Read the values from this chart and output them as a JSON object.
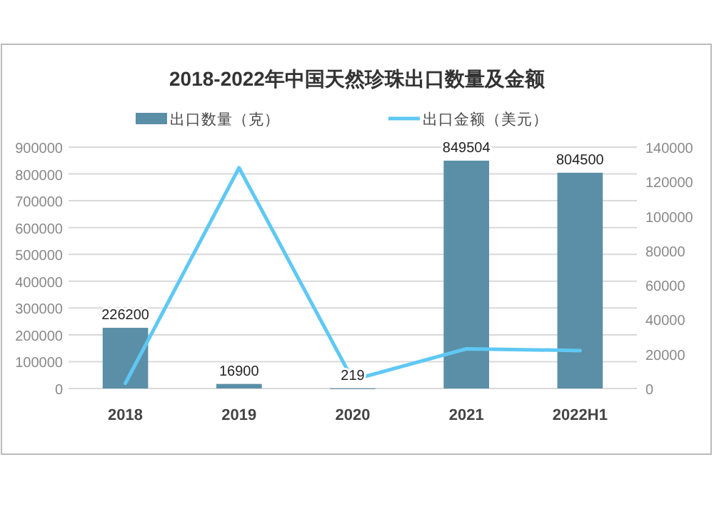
{
  "chart_data": {
    "type": "bar",
    "title": "2018-2022年中国天然珍珠出口数量及金额",
    "categories": [
      "2018",
      "2019",
      "2020",
      "2021",
      "2022H1"
    ],
    "series": [
      {
        "name": "出口数量（克）",
        "color": "#5b8fa7",
        "values": [
          226200,
          16900,
          219,
          849504,
          804500
        ],
        "data_labels": true
      },
      {
        "name": "出口金额（美元）",
        "type": "line",
        "axis": "y2",
        "color": "#5fc8f4",
        "values": [
          3000,
          128000,
          5000,
          23000,
          22000
        ]
      }
    ],
    "ylim": [
      0,
      900000
    ],
    "yticks": [
      0,
      100000,
      200000,
      300000,
      400000,
      500000,
      600000,
      700000,
      800000,
      900000
    ],
    "y2lim": [
      0,
      140000
    ],
    "y2ticks": [
      0,
      20000,
      40000,
      60000,
      80000,
      100000,
      120000,
      140000
    ],
    "grid": "y",
    "legend": "top",
    "marker": "none",
    "line_style": "solid"
  }
}
